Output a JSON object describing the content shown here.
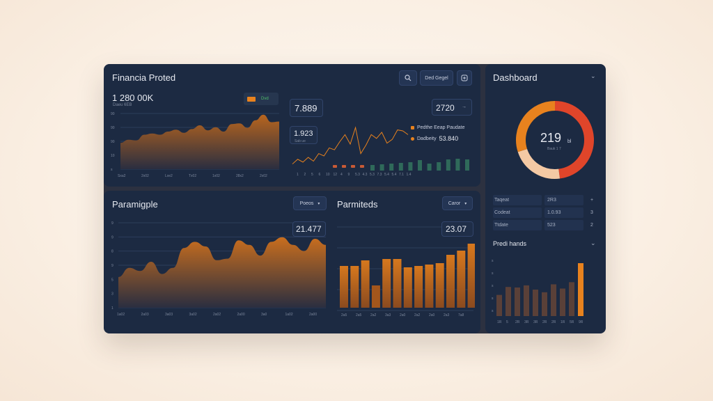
{
  "colors": {
    "accent": "#e8821e",
    "accent_dark": "#c85a1a",
    "red": "#e0452a",
    "peach": "#f4c9a4",
    "green": "#2f6a5a",
    "panel": "#1c2a42"
  },
  "top_panel": {
    "title": "Financia Proted",
    "search_button_label": "Ded Gegel",
    "main_value": "1 280 00K",
    "main_value_sub": "Daeu 6EB",
    "legend_badge": "Dvd",
    "left_chart_y_ticks": [
      "90",
      "90",
      "90",
      "10",
      "s"
    ],
    "left_chart_x_ticks": [
      "Sxa2",
      "2x02",
      "Lxe2",
      "Tx02",
      "1x02",
      "28x2",
      "2x02"
    ],
    "mid_value_a": "7.889",
    "mid_value_b": "1.923",
    "mid_value_b_sub": "Sab ue",
    "right_value": "2720",
    "legend_items": [
      {
        "label": "Pedthe Eeap Paudate",
        "value": ""
      },
      {
        "label": "Dadbeity",
        "value": "53.840"
      }
    ],
    "bar_x_ticks": [
      "1",
      "2",
      "5",
      "6",
      "10",
      "12",
      "4",
      "9",
      "5.3",
      "4.3",
      "5.3",
      "7.3",
      "5.4",
      "5.4",
      "7.1",
      "1.4"
    ]
  },
  "bottom_panel": {
    "left_title": "Paramigple",
    "left_dropdown": "Poeos",
    "left_value": "21.477",
    "left_y_ticks": [
      "9",
      "9",
      "8",
      "9",
      "5",
      "3",
      "1"
    ],
    "left_x_ticks": [
      "1a02",
      "2a03",
      "3a03",
      "3a02",
      "2a02",
      "2a00",
      "3a0",
      "1a02",
      "2a00"
    ],
    "right_title": "Parmiteds",
    "right_dropdown": "Caror",
    "right_value": "23.07",
    "right_x_ticks": [
      "2a5",
      "2a5",
      "2a2",
      "3a3",
      "2a0",
      "2a2",
      "2a0",
      "2a3",
      "7a8"
    ]
  },
  "side_panel": {
    "title": "Dashboard",
    "donut_value": "219",
    "donut_unit": "bl",
    "donut_sub": "Bauk 1 7",
    "table_rows": [
      {
        "label": "Taqeat",
        "value": "2R3",
        "action": "+"
      },
      {
        "label": "Codeat",
        "value": "1.0.93",
        "action": "3"
      },
      {
        "label": "Ttdate",
        "value": "523",
        "action": "2"
      }
    ],
    "section_title": "Predi hands",
    "bar_x_ticks": [
      "1R",
      "5",
      "2R",
      "3R",
      "3R",
      "2R",
      "2R",
      "1R",
      "5R",
      "9R"
    ]
  },
  "chart_data": [
    {
      "type": "area",
      "series": [
        {
          "values": [
            42,
            47,
            46,
            55,
            57,
            55,
            60,
            63,
            58,
            64,
            70,
            62,
            67,
            60,
            72,
            73,
            66,
            78,
            87,
            75,
            76
          ]
        }
      ],
      "ylim": [
        0,
        100
      ]
    },
    {
      "type": "line",
      "series": [
        {
          "values": [
            8,
            18,
            12,
            22,
            14,
            30,
            25,
            42,
            38,
            55,
            70,
            50,
            85,
            30,
            48,
            70,
            62,
            75,
            52,
            60,
            80,
            78,
            70
          ]
        }
      ],
      "ylim": [
        0,
        100
      ]
    },
    {
      "type": "bar",
      "series": [
        {
          "values": [
            4,
            4,
            4,
            4
          ]
        },
        {
          "values": [
            8,
            9,
            10,
            11,
            12,
            15,
            10,
            12,
            16,
            17,
            16
          ]
        }
      ]
    },
    {
      "type": "area",
      "series": [
        {
          "values": [
            40,
            52,
            48,
            60,
            44,
            52,
            78,
            86,
            80,
            62,
            64,
            88,
            82,
            68,
            86,
            92,
            82,
            74,
            90,
            82
          ]
        }
      ],
      "ylim": [
        0,
        100
      ]
    },
    {
      "type": "bar",
      "series": [
        {
          "values": [
            60,
            60,
            68,
            32,
            70,
            70,
            58,
            60,
            62,
            64,
            76,
            82,
            92
          ]
        }
      ],
      "ylim": [
        0,
        100
      ]
    },
    {
      "type": "pie",
      "values": [
        48,
        22,
        30
      ],
      "categories": [
        "red",
        "peach",
        "orange"
      ]
    },
    {
      "type": "bar",
      "series": [
        {
          "values": [
            40,
            55,
            54,
            58,
            50,
            45,
            60,
            52,
            64,
            100
          ]
        }
      ],
      "ylim": [
        0,
        100
      ]
    }
  ]
}
